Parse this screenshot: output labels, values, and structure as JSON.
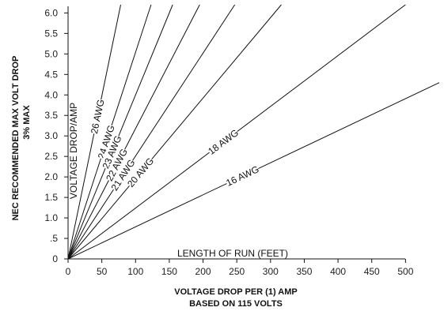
{
  "chart_data": {
    "type": "line",
    "title": "",
    "ylabel_line1": "NEC RECOMMENDED MAX VOLT DROP",
    "ylabel_line2": "3% MAX",
    "xlabel_line1": "VOLTAGE DROP PER (1) AMP",
    "xlabel_line2": "BASED ON 115 VOLTS",
    "inner_ylabel": "VOLTAGE DROP/AMP",
    "inner_xlabel": "LENGTH OF RUN (FEET)",
    "xlim": [
      0,
      550
    ],
    "ylim": [
      0,
      6.2
    ],
    "x_ticks": [
      0,
      50,
      100,
      150,
      200,
      250,
      300,
      350,
      400,
      450,
      500
    ],
    "y_ticks": [
      0,
      0.5,
      1.0,
      1.5,
      2.0,
      2.5,
      3.0,
      3.5,
      4.0,
      4.5,
      5.0,
      5.5,
      6.0
    ],
    "y_tick_labels": [
      "0",
      ".5",
      "1.0",
      "1.5",
      "2.0",
      "2.5",
      "3.0",
      "3.5",
      "4.0",
      "4.5",
      "5.0",
      "5.5",
      "6.0"
    ],
    "grid": false,
    "series": [
      {
        "name": "26 AWG",
        "x": [
          0,
          78
        ],
        "y": [
          0,
          6.2
        ],
        "label_at": 0.56
      },
      {
        "name": "24 AWG",
        "x": [
          0,
          123
        ],
        "y": [
          0,
          6.2
        ],
        "label_at": 0.46
      },
      {
        "name": "23 AWG",
        "x": [
          0,
          155
        ],
        "y": [
          0,
          6.2
        ],
        "label_at": 0.42
      },
      {
        "name": "22 AWG",
        "x": [
          0,
          195
        ],
        "y": [
          0,
          6.2
        ],
        "label_at": 0.37
      },
      {
        "name": "21 AWG",
        "x": [
          0,
          247
        ],
        "y": [
          0,
          6.2
        ],
        "label_at": 0.33
      },
      {
        "name": "20 AWG",
        "x": [
          0,
          316
        ],
        "y": [
          0,
          6.2
        ],
        "label_at": 0.34
      },
      {
        "name": "18 AWG",
        "x": [
          0,
          500
        ],
        "y": [
          0,
          6.2
        ],
        "label_at": 0.46
      },
      {
        "name": "16 AWG",
        "x": [
          0,
          550
        ],
        "y": [
          0,
          4.3
        ],
        "label_at": 0.47
      }
    ]
  }
}
